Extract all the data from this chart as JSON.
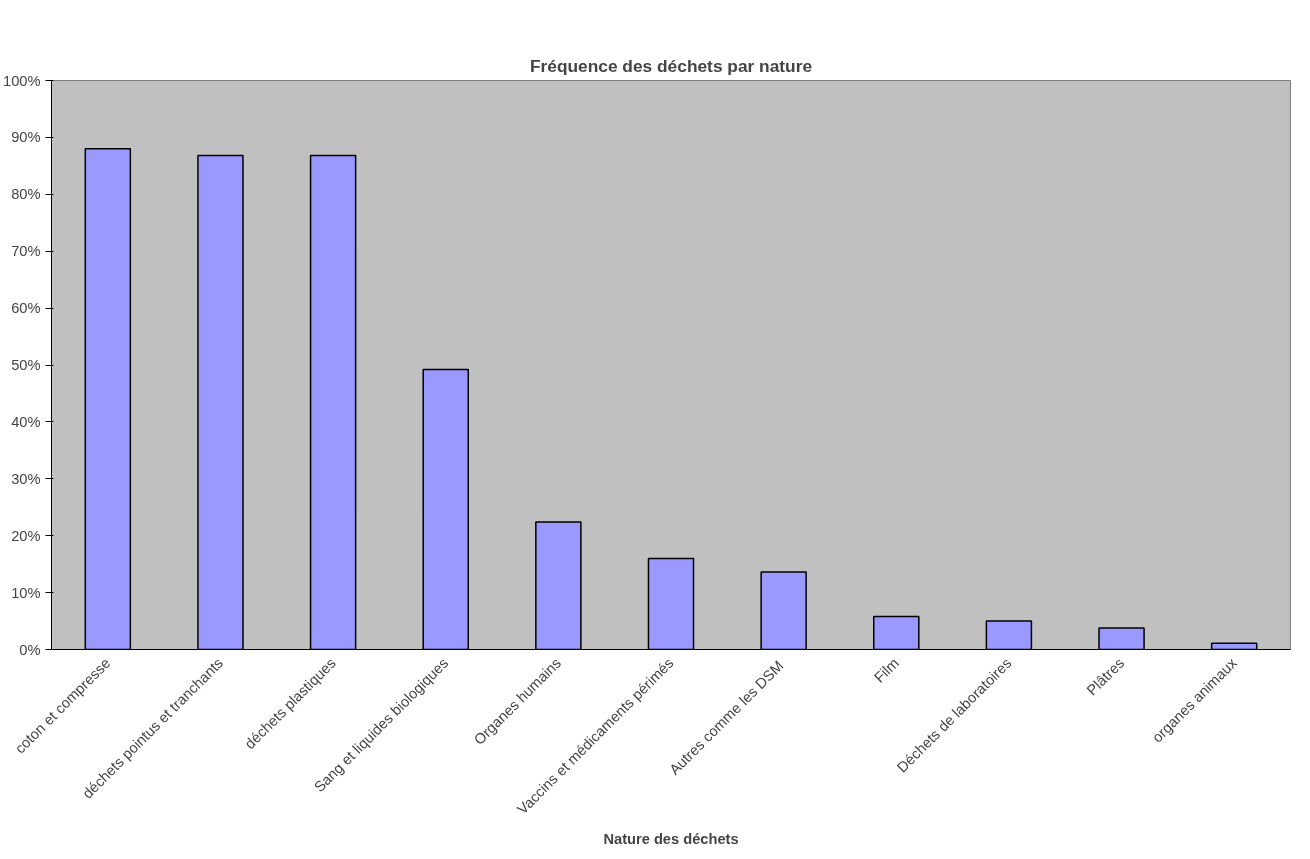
{
  "chart_data": {
    "type": "bar",
    "title": "Fréquence des déchets par nature",
    "xlabel": "Nature des déchets",
    "categories": [
      "coton et compresse",
      "déchets pointus et tranchants",
      "déchets plastiques",
      "Sang et liquides biologiques",
      "Organes humains",
      "Vaccins et médicaments périmés",
      "Autres  comme les DSM",
      "Film",
      "Déchets de laboratoires",
      "Plâtres",
      "organes animaux"
    ],
    "values": [
      88.0,
      86.8,
      86.8,
      49.2,
      22.4,
      16.0,
      13.6,
      5.8,
      5.0,
      3.8,
      1.1
    ],
    "color": "#9999ff",
    "ylim": [
      0,
      100
    ],
    "yticks": [
      {
        "value": 0,
        "label": "0%"
      },
      {
        "value": 10,
        "label": "10%"
      },
      {
        "value": 20,
        "label": "20%"
      },
      {
        "value": 30,
        "label": "30%"
      },
      {
        "value": 40,
        "label": "40%"
      },
      {
        "value": 50,
        "label": "50%"
      },
      {
        "value": 60,
        "label": "60%"
      },
      {
        "value": 70,
        "label": "70%"
      },
      {
        "value": 80,
        "label": "80%"
      },
      {
        "value": 90,
        "label": "90%"
      },
      {
        "value": 100,
        "label": "100%"
      }
    ],
    "grid": false
  }
}
